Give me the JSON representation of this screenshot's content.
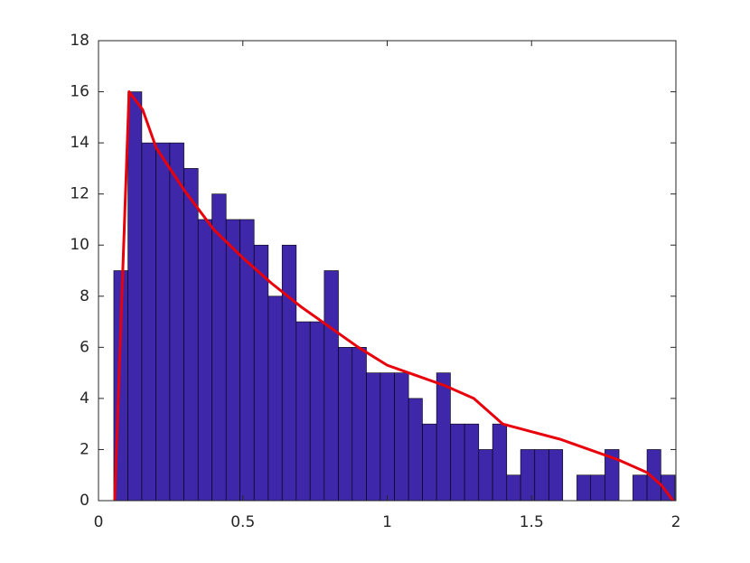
{
  "chart_data": {
    "type": "histogram",
    "bins": [
      0.053,
      0.102,
      0.15,
      0.199,
      0.247,
      0.296,
      0.345,
      0.393,
      0.442,
      0.49,
      0.539,
      0.588,
      0.636,
      0.685,
      0.733,
      0.782,
      0.831,
      0.879,
      0.928,
      0.976,
      1.025,
      1.074,
      1.122,
      1.171,
      1.219,
      1.268,
      1.317,
      1.365,
      1.414,
      1.462,
      1.511,
      1.56,
      1.608,
      1.657,
      1.705,
      1.754,
      1.803,
      1.851,
      1.9,
      1.948,
      1.997
    ],
    "values": [
      9,
      16,
      14,
      14,
      14,
      13,
      11,
      12,
      11,
      11,
      10,
      8,
      10,
      7,
      7,
      9,
      6,
      6,
      5,
      5,
      5,
      4,
      3,
      5,
      3,
      3,
      2,
      3,
      1,
      2,
      2,
      2,
      0,
      1,
      1,
      2,
      0,
      1,
      2,
      1
    ],
    "color": "#3f27a9",
    "overlay": {
      "type": "line",
      "color": "#e8000b",
      "x": [
        0.056,
        0.106,
        0.153,
        0.2,
        0.3,
        0.4,
        0.5,
        0.6,
        0.7,
        0.8,
        0.9,
        1.0,
        1.1,
        1.2,
        1.3,
        1.4,
        1.5,
        1.6,
        1.7,
        1.8,
        1.9,
        1.95,
        1.99
      ],
      "values": [
        0,
        16,
        15.3,
        13.8,
        12.1,
        10.6,
        9.5,
        8.5,
        7.6,
        6.8,
        6.0,
        5.3,
        4.9,
        4.5,
        4.0,
        3.0,
        2.7,
        2.4,
        2.0,
        1.6,
        1.1,
        0.6,
        0
      ]
    },
    "xlim": [
      0,
      2
    ],
    "xticks": [
      0,
      0.5,
      1,
      1.5,
      2
    ],
    "ylim": [
      0,
      18
    ],
    "yticks": [
      0,
      2,
      4,
      6,
      8,
      10,
      12,
      14,
      16,
      18
    ]
  }
}
